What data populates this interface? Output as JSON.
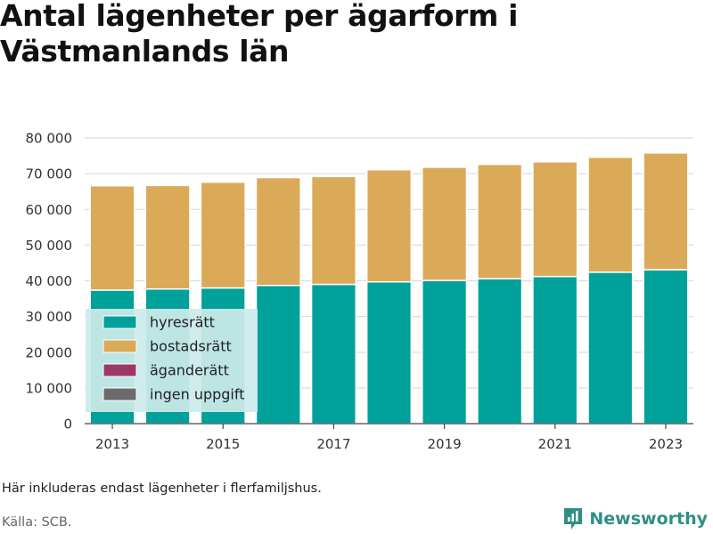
{
  "title": "Antal lägenheter per ägarform i Västmanlands län",
  "note": "Här inkluderas endast lägenheter i flerfamiljshus.",
  "source": "Källa: SCB.",
  "brand": {
    "name": "Newsworthy",
    "icon": "newsworthy-logo-icon"
  },
  "colors": {
    "hyresratt": "#00a19a",
    "bostadsratt": "#dbaa58",
    "aganderatt": "#9a3a64",
    "ingen_uppgift": "#6b6b6b",
    "grid": "#dcdcdc",
    "legend_bg": "#cdeaea"
  },
  "chart_data": {
    "type": "bar",
    "stacked": true,
    "categories": [
      "2013",
      "2014",
      "2015",
      "2016",
      "2017",
      "2018",
      "2019",
      "2020",
      "2021",
      "2022",
      "2023"
    ],
    "x_tick_labels": [
      "2013",
      "2015",
      "2017",
      "2019",
      "2021",
      "2023"
    ],
    "series": [
      {
        "name": "hyresrätt",
        "color": "#00a19a",
        "values": [
          37400,
          37700,
          38000,
          38700,
          39000,
          39700,
          40100,
          40600,
          41200,
          42400,
          43100
        ]
      },
      {
        "name": "bostadsrätt",
        "color": "#dbaa58",
        "values": [
          29200,
          29000,
          29600,
          30200,
          30200,
          31400,
          31700,
          32000,
          32100,
          32200,
          32700
        ]
      },
      {
        "name": "äganderätt",
        "color": "#9a3a64",
        "values": [
          0,
          0,
          0,
          0,
          0,
          0,
          0,
          0,
          0,
          0,
          0
        ]
      },
      {
        "name": "ingen uppgift",
        "color": "#6b6b6b",
        "values": [
          0,
          0,
          0,
          0,
          0,
          0,
          0,
          0,
          0,
          0,
          0
        ]
      }
    ],
    "ylim": [
      0,
      80000
    ],
    "y_ticks": [
      {
        "value": 0,
        "label": "0"
      },
      {
        "value": 10000,
        "label": "10 000"
      },
      {
        "value": 20000,
        "label": "20 000"
      },
      {
        "value": 30000,
        "label": "30 000"
      },
      {
        "value": 40000,
        "label": "40 000"
      },
      {
        "value": 50000,
        "label": "50 000"
      },
      {
        "value": 60000,
        "label": "60 000"
      },
      {
        "value": 70000,
        "label": "70 000"
      },
      {
        "value": 80000,
        "label": "80 000"
      }
    ],
    "grid": true,
    "legend_position": "bottom-left"
  }
}
